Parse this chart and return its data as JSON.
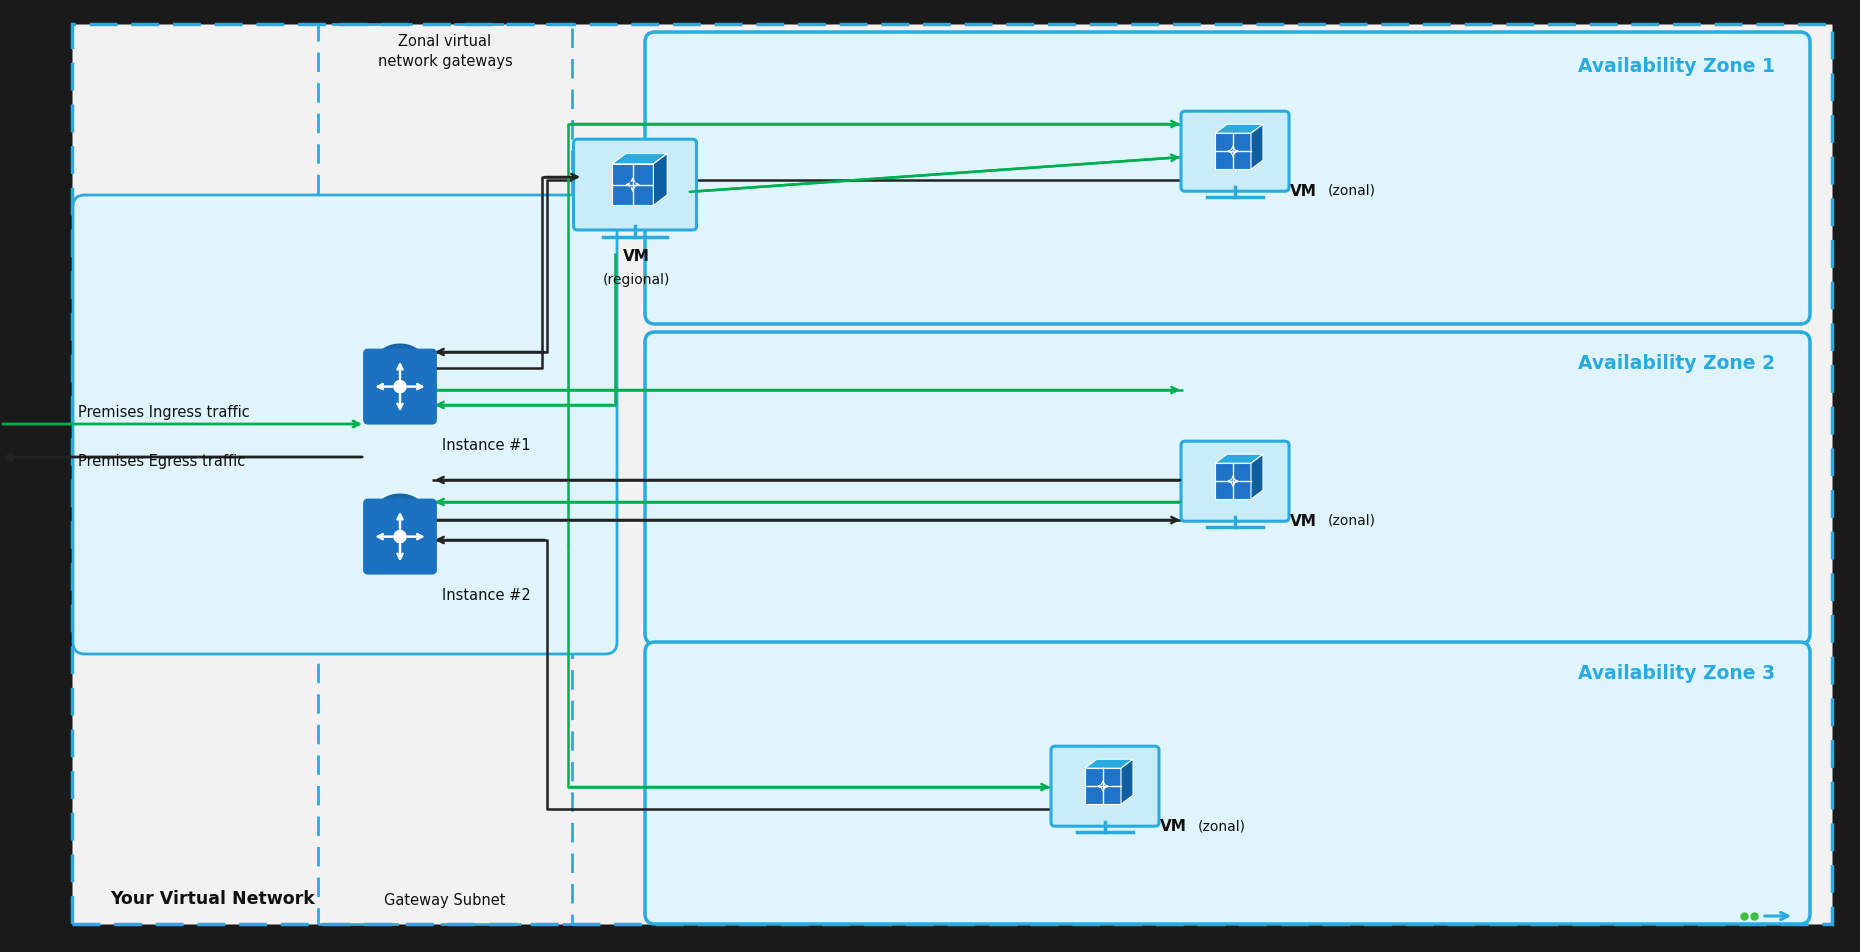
{
  "bg_color": "#1a1a1a",
  "vnet_fill": "#f0f0f0",
  "az_fill": "#dff4fb",
  "mid_band_fill": "#dff4fb",
  "cyan": "#29abe2",
  "green": "#00b050",
  "black_arr": "#222222",
  "white": "#ffffff",
  "vnet_label": "Your Virtual Network",
  "gateway_subnet_label": "Gateway Subnet",
  "zonal_gw_label": "Zonal virtual\nnetwork gateways",
  "az1_label": "Availability Zone 1",
  "az2_label": "Availability Zone 2",
  "az3_label": "Availability Zone 3",
  "instance1_label": "Instance #1",
  "instance2_label": "Instance #2",
  "vm_regional_label1": "VM",
  "vm_regional_label2": "(regional)",
  "vm_zonal_label1": "VM",
  "vm_zonal_label2": "(zonal)",
  "ingress_label": "Premises Ingress traffic",
  "egress_label": "Premises Egress traffic"
}
